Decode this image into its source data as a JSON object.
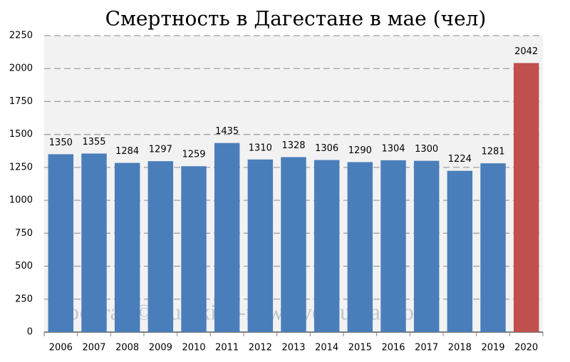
{
  "chart_data": {
    "type": "bar",
    "title": "Смертность в Дагестане в мае (чел)",
    "watermark": "Росстат © burckina-new.livejournal.com",
    "categories": [
      "2006",
      "2007",
      "2008",
      "2009",
      "2010",
      "2011",
      "2012",
      "2013",
      "2014",
      "2015",
      "2016",
      "2017",
      "2018",
      "2019",
      "2020"
    ],
    "values": [
      1350,
      1355,
      1284,
      1297,
      1259,
      1435,
      1310,
      1328,
      1306,
      1290,
      1304,
      1300,
      1224,
      1281,
      2042
    ],
    "colors": [
      "#4a7ebb",
      "#4a7ebb",
      "#4a7ebb",
      "#4a7ebb",
      "#4a7ebb",
      "#4a7ebb",
      "#4a7ebb",
      "#4a7ebb",
      "#4a7ebb",
      "#4a7ebb",
      "#4a7ebb",
      "#4a7ebb",
      "#4a7ebb",
      "#4a7ebb",
      "#c0504d"
    ],
    "ylim": [
      0,
      2250
    ],
    "yticks": [
      0,
      250,
      500,
      750,
      1000,
      1250,
      1500,
      1750,
      2000,
      2250
    ],
    "grid": true
  }
}
